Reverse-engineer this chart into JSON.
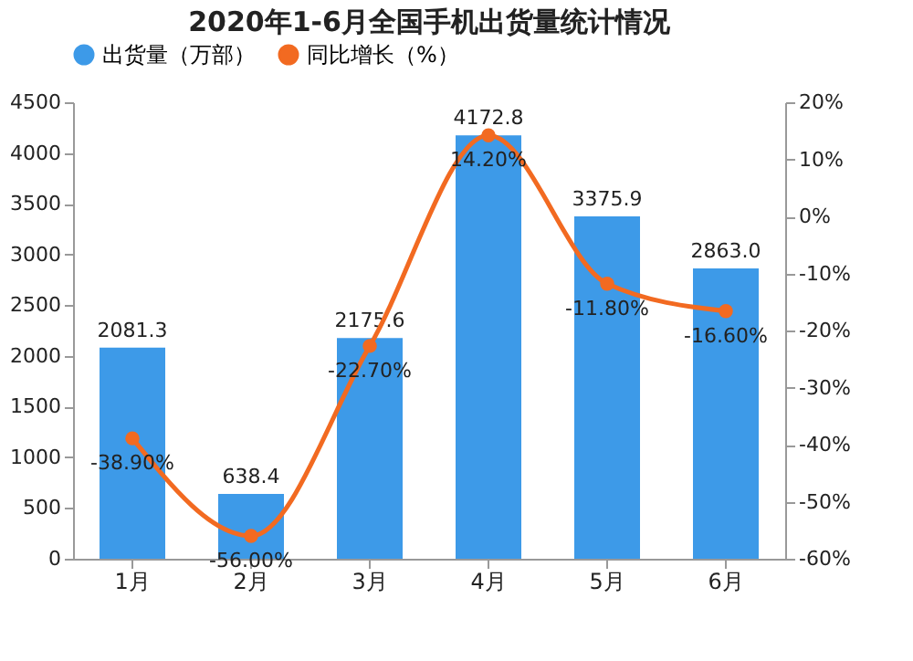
{
  "chart_data": {
    "type": "bar",
    "title": "2020年1-6月全国手机出货量统计情况",
    "categories": [
      "1月",
      "2月",
      "3月",
      "4月",
      "5月",
      "6月"
    ],
    "series": [
      {
        "name": "出货量（万部）",
        "color": "#3d9ae8",
        "values": [
          2081.3,
          638.4,
          2175.6,
          4172.8,
          3375.9,
          2863.0
        ],
        "value_labels": [
          "2081.3",
          "638.4",
          "2175.6",
          "4172.8",
          "3375.9",
          "2863.0"
        ]
      },
      {
        "name": "同比增长（%）",
        "type": "line",
        "axis": "y2",
        "color": "#f26a21",
        "marker": "circle",
        "values": [
          -38.9,
          -56.0,
          -22.7,
          14.2,
          -11.8,
          -16.6
        ],
        "value_labels": [
          "-38.90%",
          "-56.00%",
          "-22.70%",
          "14.20%",
          "-11.80%",
          "-16.60%"
        ]
      }
    ],
    "ylim": [
      0,
      4500
    ],
    "yticks": [
      0,
      500,
      1000,
      1500,
      2000,
      2500,
      3000,
      3500,
      4000,
      4500
    ],
    "y2lim": [
      -60,
      20
    ],
    "y2ticks": [
      {
        "value": -60,
        "label": "-60%"
      },
      {
        "value": -50,
        "label": "-50%"
      },
      {
        "value": -40,
        "label": "-40%"
      },
      {
        "value": -30,
        "label": "-30%"
      },
      {
        "value": -20,
        "label": "-20%"
      },
      {
        "value": -10,
        "label": "-10%"
      },
      {
        "value": 0,
        "label": "0%"
      },
      {
        "value": 10,
        "label": "10%"
      },
      {
        "value": 20,
        "label": "20%"
      }
    ],
    "legend": "top",
    "grid": false
  }
}
